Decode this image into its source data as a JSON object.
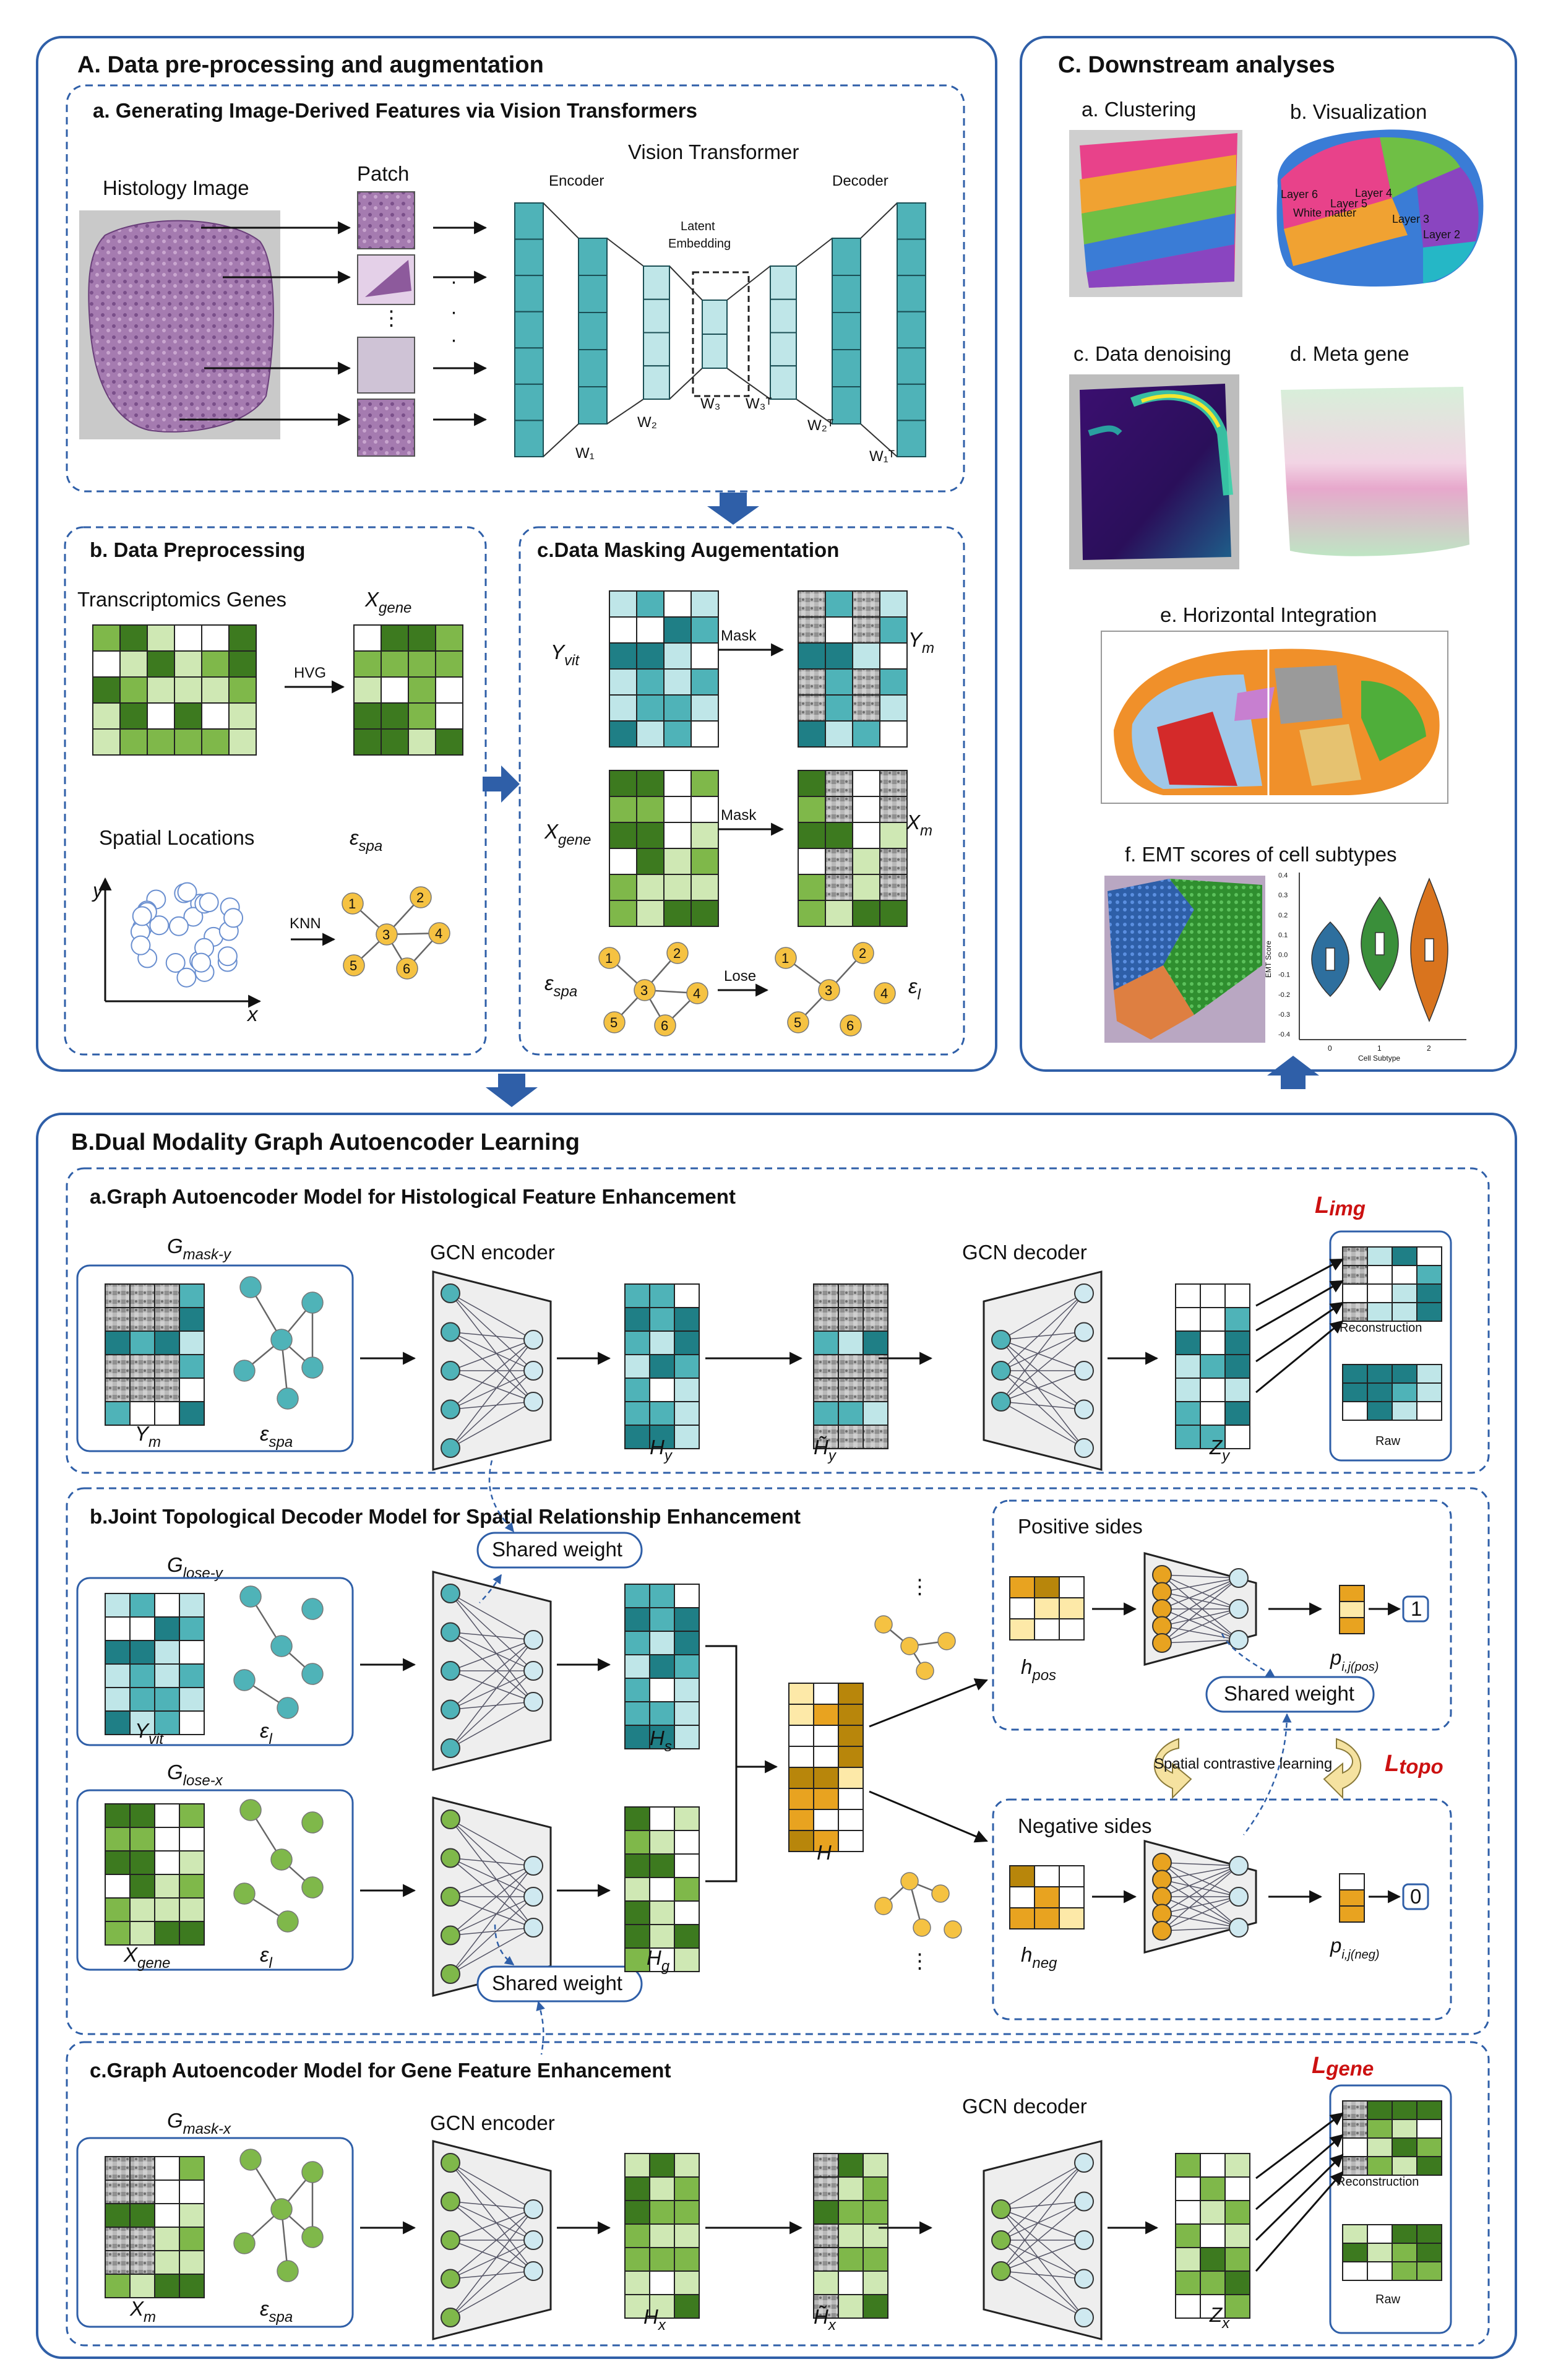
{
  "panelA": {
    "title": "A. Data pre-processing and augmentation",
    "a": {
      "title": "a. Generating Image-Derived Features via Vision Transformers",
      "histology_label": "Histology Image",
      "patch_label": "Patch",
      "vit_label": "Vision Transformer",
      "encoder_label": "Encoder",
      "decoder_label": "Decoder",
      "latent_label_1": "Latent",
      "latent_label_2": "Embedding",
      "weights": {
        "w1": "W₁",
        "w2": "W₂",
        "w3": "W₃",
        "w3t": "W₃ᵀ",
        "w2t": "W₂ᵀ",
        "w1t": "W₁ᵀ"
      }
    },
    "b": {
      "title": "b. Data Preprocessing",
      "genes_label": "Transcriptomics Genes",
      "xgene_label": "X",
      "xgene_sub": "gene",
      "hvg_label": "HVG",
      "spatial_label": "Spatial Locations",
      "espa_label": "ε",
      "espa_sub": "spa",
      "knn_label": "KNN",
      "axis_y": "y",
      "axis_x": "x",
      "node_labels": [
        "1",
        "2",
        "3",
        "4",
        "5",
        "6"
      ]
    },
    "c": {
      "title": "c.Data Masking Augementation",
      "yvit": "Y",
      "yvit_sub": "vit",
      "ym": "Y",
      "ym_sub": "m",
      "xgene": "X",
      "xgene_sub": "gene",
      "xm": "X",
      "xm_sub": "m",
      "espa": "ε",
      "espa_sub": "spa",
      "el": "ε",
      "el_sub": "l",
      "mask1": "Mask",
      "mask2": "Mask",
      "lose": "Lose"
    }
  },
  "panelC": {
    "title": "C. Downstream analyses",
    "items": {
      "a": "a. Clustering",
      "b": "b. Visualization",
      "c": "c. Data denoising",
      "d": "d. Meta gene",
      "e": "e. Horizontal Integration",
      "f": "f. EMT scores of cell subtypes"
    },
    "layer_labels": [
      "Layer 6",
      "White matter",
      "Layer 5",
      "Layer 4",
      "Layer 3",
      "Layer 2"
    ],
    "violin": {
      "ylabel": "EMT Score",
      "xlabel": "Cell Subtype",
      "categories": [
        "0",
        "1",
        "2"
      ],
      "yticks": [
        "0.4",
        "0.3",
        "0.2",
        "0.1",
        "0.0",
        "-0.1",
        "-0.2",
        "-0.3",
        "-0.4"
      ]
    }
  },
  "panelB": {
    "title": "B.Dual Modality Graph Autoencoder Learning",
    "a": {
      "title": "a.Graph Autoencoder Model for Histological Feature Enhancement",
      "g": "G",
      "g_sub": "mask-y",
      "ym": "Y",
      "ym_sub": "m",
      "espa": "ε",
      "espa_sub": "spa",
      "enc": "GCN encoder",
      "dec": "GCN decoder",
      "hy": "H",
      "hy_sub": "y",
      "hty": "H̃",
      "hty_sub": "y",
      "zy": "Z",
      "zy_sub": "y",
      "loss": "L",
      "loss_sub": "img",
      "recon": "Reconstruction",
      "raw": "Raw"
    },
    "b": {
      "title": "b.Joint Topological Decoder Model for Spatial Relationship Enhancement",
      "gly": "G",
      "gly_sub": "lose-y",
      "glx": "G",
      "glx_sub": "lose-x",
      "yvit": "Y",
      "yvit_sub": "vit",
      "el": "ε",
      "el_sub": "l",
      "xgene": "X",
      "xgene_sub": "gene",
      "shared": "Shared weight",
      "hs": "H",
      "hs_sub": "s",
      "hg": "H",
      "hg_sub": "g",
      "h": "H",
      "pos_title": "Positive sides",
      "neg_title": "Negative sides",
      "hpos": "h",
      "hpos_sub": "pos",
      "hneg": "h",
      "hneg_sub": "neg",
      "ppos": "p",
      "ppos_sub": "i,j(pos)",
      "pneg": "p",
      "pneg_sub": "i,j(neg)",
      "one": "1",
      "zero": "0",
      "contrast": "Spatial contrastive learning",
      "loss": "L",
      "loss_sub": "topo"
    },
    "c": {
      "title": "c.Graph Autoencoder Model for Gene Feature Enhancement",
      "g": "G",
      "g_sub": "mask-x",
      "xm": "X",
      "xm_sub": "m",
      "espa": "ε",
      "espa_sub": "spa",
      "enc": "GCN encoder",
      "dec": "GCN decoder",
      "hx": "H",
      "hx_sub": "x",
      "htx": "H̃",
      "htx_sub": "x",
      "zx": "Z",
      "zx_sub": "x",
      "loss": "L",
      "loss_sub": "gene",
      "recon": "Reconstruction",
      "raw": "Raw"
    }
  },
  "colors": {
    "frame": "#2f5fa8",
    "arrow_block": "#2f5fa8",
    "teal_dark": "#1f7f86",
    "teal_mid": "#4fb3b8",
    "teal_light": "#bfe6e8",
    "green_dark": "#3d7a1f",
    "green_mid": "#7fb84a",
    "green_light": "#cfe8b4",
    "orange_dark": "#b8860b",
    "orange_mid": "#e8a320",
    "orange_light": "#fde9a8",
    "node_yellow": "#f5c242",
    "loss_red": "#cc1111"
  }
}
